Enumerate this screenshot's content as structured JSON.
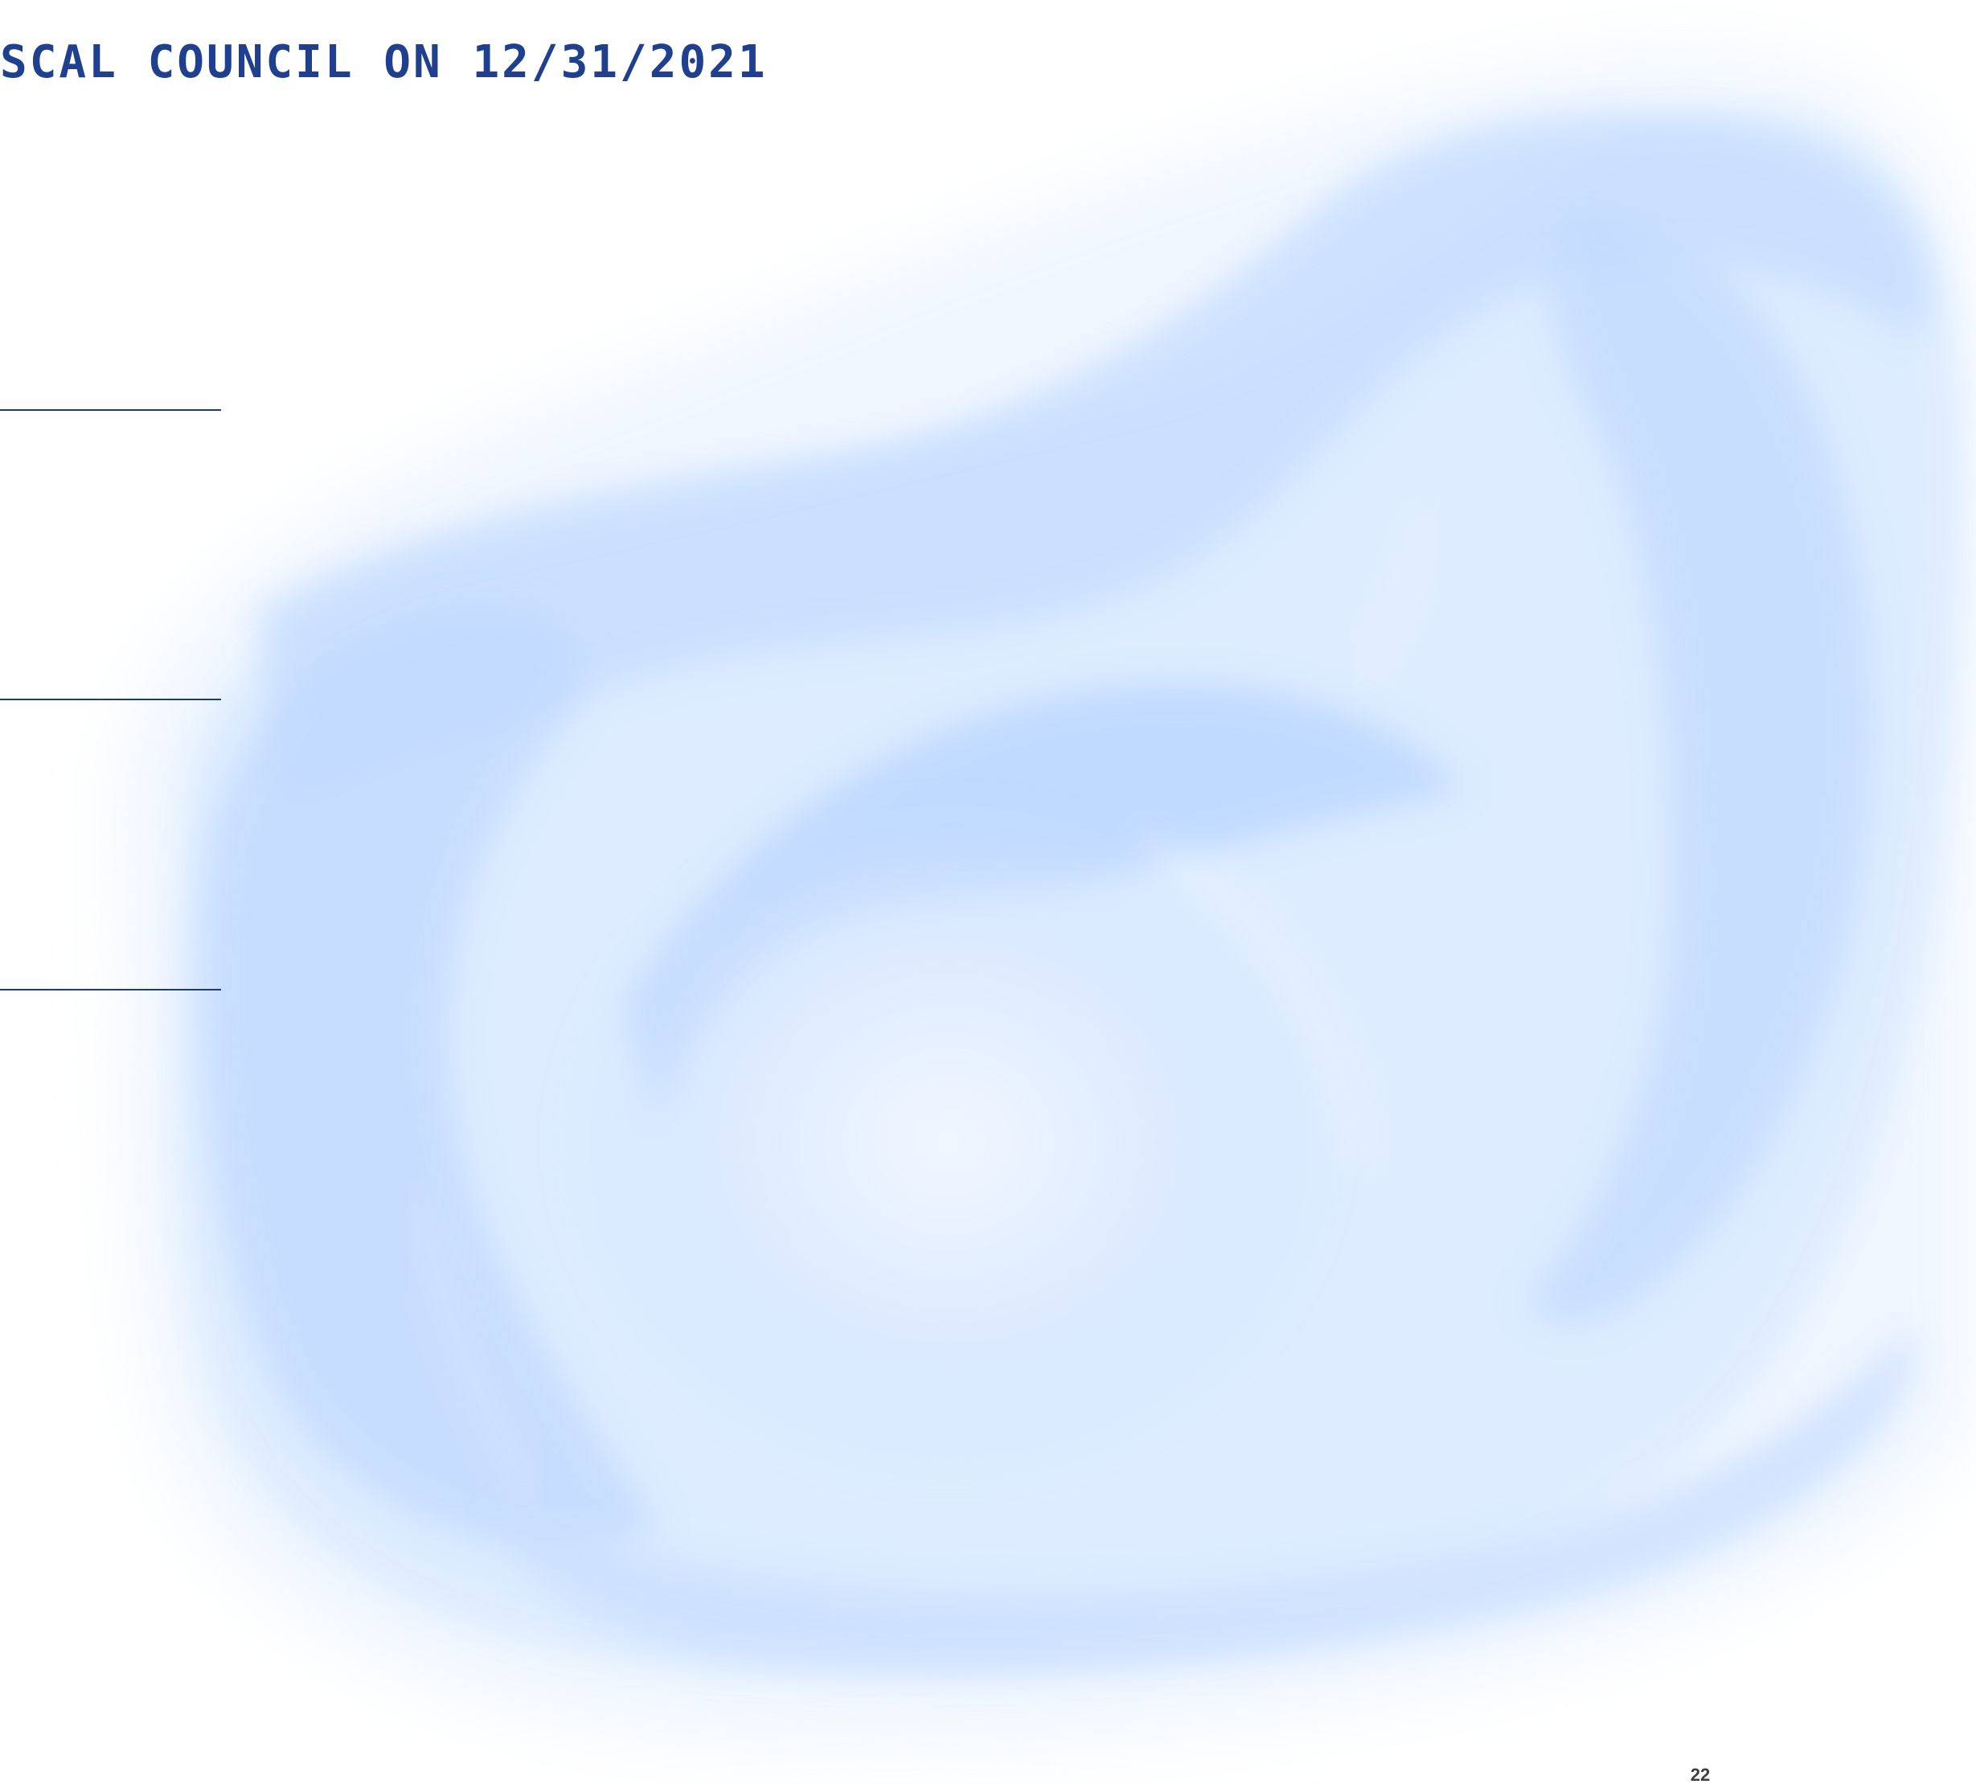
{
  "header": {
    "title": "SCAL COUNCIL ON 12/31/2021"
  },
  "footer": {
    "page_number": "22"
  },
  "colors": {
    "title": "#1f3f8f",
    "rule": "#1f3a78",
    "decoration_light": "#e8f2ff",
    "decoration_mid": "#cfe3ff",
    "decoration_deep": "#b6d4ff",
    "page_number": "#3f3f3f"
  }
}
